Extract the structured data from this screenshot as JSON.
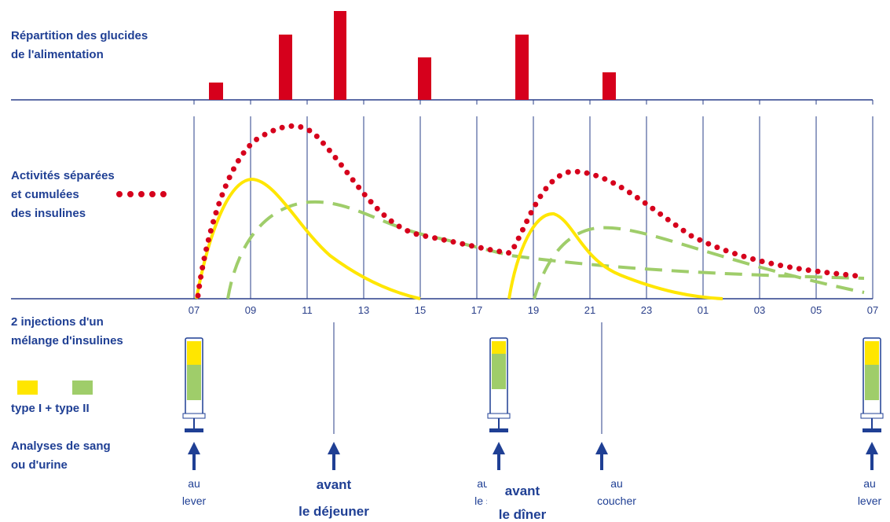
{
  "sections": {
    "glucides": [
      "Répartition des glucides",
      "de l'alimentation"
    ],
    "insulines": [
      "Activités séparées",
      "et cumulées",
      "des insulines"
    ],
    "injections": [
      "2 injections d'un",
      "mélange d'insulines"
    ],
    "types": "type I + type II",
    "analyses": [
      "Analyses de sang",
      "ou d'urine"
    ]
  },
  "axis": {
    "ticks": [
      "07",
      "09",
      "11",
      "13",
      "15",
      "17",
      "19",
      "21",
      "23",
      "01",
      "03",
      "05",
      "07"
    ]
  },
  "moments": [
    {
      "lines": [
        "au",
        "lever"
      ]
    },
    {
      "lines": [
        "avant",
        "le déjeuner"
      ]
    },
    {
      "lines": [
        "au",
        "le s"
      ]
    },
    {
      "lines": [
        "avant",
        "le dîner"
      ]
    },
    {
      "lines": [
        "au",
        "coucher"
      ]
    },
    {
      "lines": [
        "au",
        "lever"
      ]
    }
  ]
}
